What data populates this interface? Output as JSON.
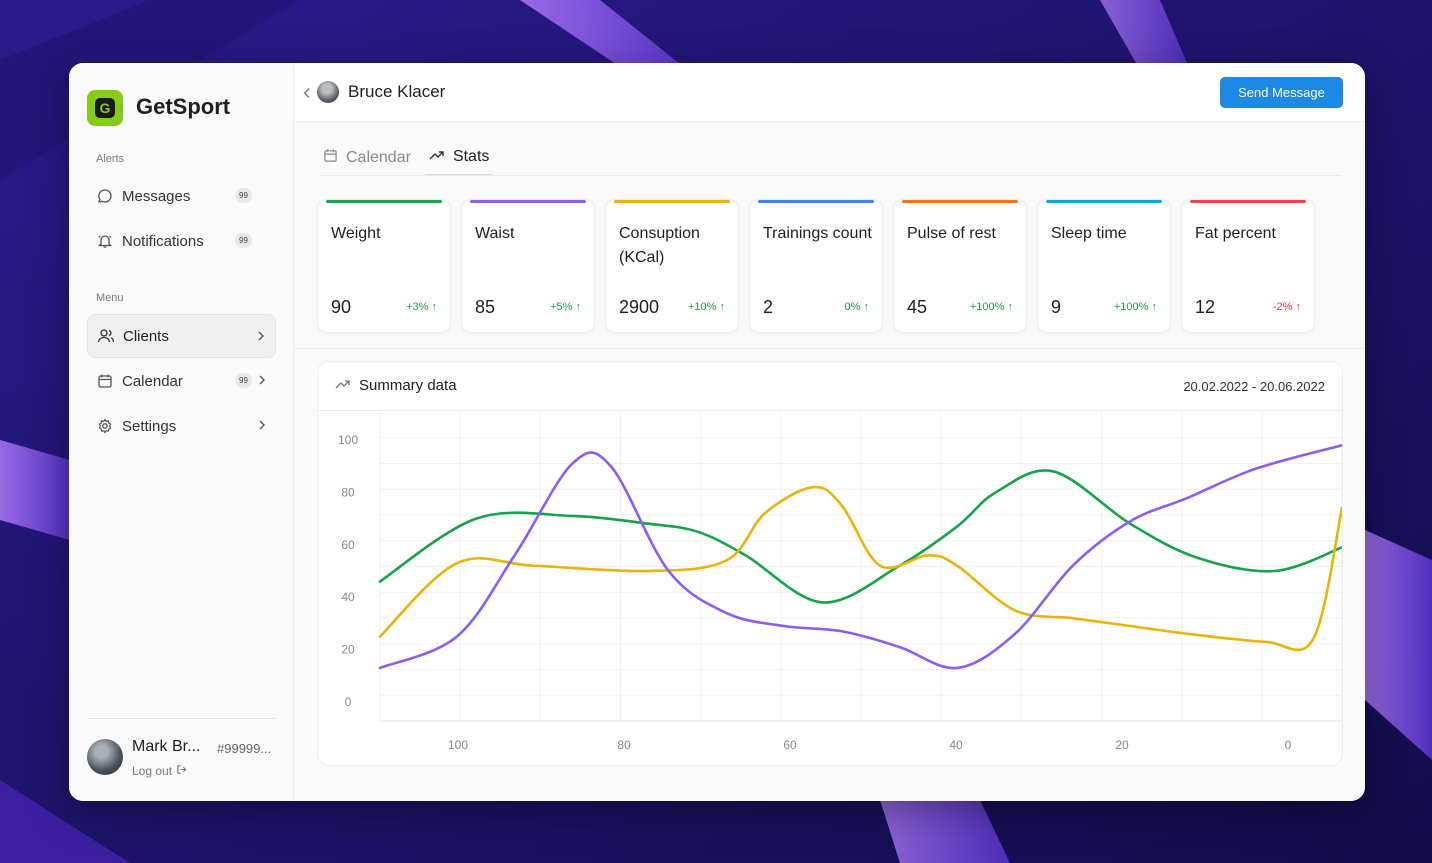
{
  "app": {
    "name": "GetSport",
    "logo_letter": "G",
    "accent": "#84cc16"
  },
  "sidebar": {
    "alerts_label": "Alerts",
    "alerts": [
      {
        "label": "Messages",
        "badge": "99",
        "icon": "message-icon"
      },
      {
        "label": "Notifications",
        "badge": "99",
        "icon": "bell-icon"
      }
    ],
    "menu_label": "Menu",
    "menu": [
      {
        "label": "Clients",
        "icon": "users-icon",
        "active": true
      },
      {
        "label": "Calendar",
        "badge": "99",
        "icon": "calendar-icon"
      },
      {
        "label": "Settings",
        "icon": "gear-icon"
      }
    ],
    "user": {
      "name": "Mark Br...",
      "id": "#99999...",
      "logout": "Log out"
    }
  },
  "header": {
    "client_name": "Bruce Klacer",
    "send_button": "Send Message",
    "button_color": "#1e88e5"
  },
  "tabs": [
    {
      "label": "Calendar",
      "icon": "calendar-icon",
      "active": false
    },
    {
      "label": "Stats",
      "icon": "trending-up-icon",
      "active": true
    }
  ],
  "stats": [
    {
      "title": "Weight",
      "value": "90",
      "change": "+3% ↑",
      "trend": "pos",
      "color": "#16a34a"
    },
    {
      "title": "Waist",
      "value": "85",
      "change": "+5% ↑",
      "trend": "pos",
      "color": "#8b5cf6"
    },
    {
      "title": "Consuption (KCal)",
      "value": "2900",
      "change": "+10% ↑",
      "trend": "pos",
      "color": "#eab308"
    },
    {
      "title": "Trainings count",
      "value": "2",
      "change": "0% ↑",
      "trend": "pos",
      "color": "#3b82f6"
    },
    {
      "title": "Pulse of rest",
      "value": "45",
      "change": "+100% ↑",
      "trend": "pos",
      "color": "#f97316"
    },
    {
      "title": "Sleep time",
      "value": "9",
      "change": "+100% ↑",
      "trend": "pos",
      "color": "#0ea5e9"
    },
    {
      "title": "Fat percent",
      "value": "12",
      "change": "-2% ↑",
      "trend": "neg",
      "color": "#ef4444"
    }
  ],
  "summary": {
    "title": "Summary data",
    "date_range": "20.02.2022 - 20.06.2022"
  },
  "chart_data": {
    "type": "line",
    "title": "Summary data",
    "x_ticks": [
      "100",
      "80",
      "60",
      "40",
      "20",
      "0"
    ],
    "y_ticks": [
      "100",
      "80",
      "60",
      "40",
      "20",
      "0"
    ],
    "ylim": [
      0,
      100
    ],
    "grid": true,
    "series": [
      {
        "color": "#16a34a",
        "x": [
          0,
          10,
          20,
          28,
          33,
          38,
          46,
          54,
          60,
          64,
          70,
          78,
          85,
          93,
          100
        ],
        "y": [
          46,
          70,
          71,
          68,
          65,
          56,
          38,
          52,
          67,
          80,
          88,
          68,
          55,
          50,
          59
        ]
      },
      {
        "color": "#eab308",
        "x": [
          0,
          8,
          16,
          28,
          36,
          40,
          45,
          48,
          52,
          57,
          60,
          66,
          72,
          78,
          84,
          92,
          97,
          100
        ],
        "y": [
          25,
          53,
          52,
          50,
          54,
          72,
          82,
          75,
          52,
          56,
          52,
          35,
          32,
          29,
          26,
          23,
          24,
          74
        ]
      },
      {
        "color": "#8b5cf6",
        "x": [
          0,
          8,
          14,
          20,
          24,
          30,
          36,
          42,
          48,
          54,
          60,
          66,
          72,
          78,
          84,
          91,
          100
        ],
        "y": [
          13,
          25,
          56,
          91,
          90,
          50,
          34,
          29,
          27,
          21,
          13,
          26,
          52,
          69,
          78,
          89,
          98
        ]
      }
    ]
  }
}
